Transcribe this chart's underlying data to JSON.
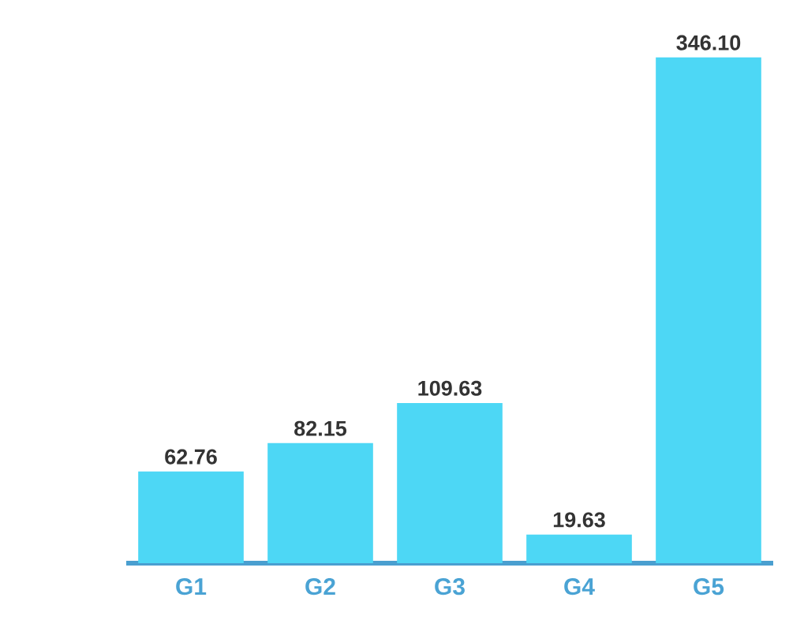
{
  "chart_data": {
    "type": "bar",
    "categories": [
      "G1",
      "G2",
      "G3",
      "G4",
      "G5"
    ],
    "values": [
      62.76,
      82.15,
      109.63,
      19.63,
      346.1
    ],
    "value_labels": [
      "62.76",
      "82.15",
      "109.63",
      "19.63",
      "346.10"
    ],
    "color": "#4dd7f5",
    "tick_labels": "x"
  }
}
